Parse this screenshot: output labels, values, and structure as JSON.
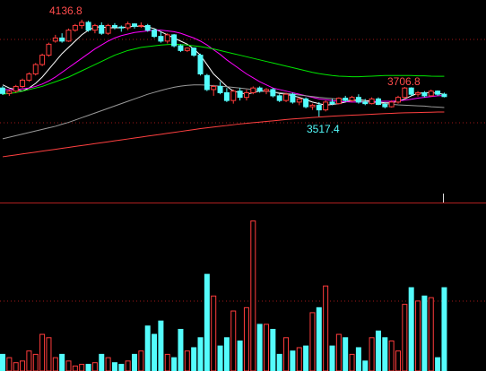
{
  "chart_data": {
    "type": "candlestick",
    "open": [
      3700,
      3665,
      3680,
      3710,
      3750,
      3790,
      3850,
      3910,
      4000,
      4020,
      4000,
      4070,
      4100,
      4120,
      4070,
      4100,
      4050,
      4100,
      4090,
      4085,
      4110,
      4095,
      4100,
      4070,
      4030,
      4000,
      4040,
      3970,
      3940,
      3955,
      3910,
      3780,
      3690,
      3710,
      3670,
      3620,
      3680,
      3640,
      3670,
      3700,
      3680,
      3690,
      3650,
      3620,
      3660,
      3610,
      3630,
      3580,
      3590,
      3560,
      3610,
      3600,
      3635,
      3620,
      3640,
      3610,
      3600,
      3630,
      3595,
      3580,
      3610,
      3640,
      3700,
      3660,
      3670,
      3650,
      3680,
      3660
    ],
    "high": [
      3712,
      3690,
      3720,
      3760,
      3800,
      3860,
      3920,
      3990,
      4040,
      4050,
      4080,
      4110,
      4136.8,
      4130,
      4110,
      4120,
      4110,
      4115,
      4100,
      4125,
      4115,
      4120,
      4110,
      4080,
      4060,
      4050,
      4045,
      3980,
      3960,
      3960,
      3920,
      3790,
      3720,
      3740,
      3700,
      3690,
      3700,
      3690,
      3710,
      3710,
      3700,
      3700,
      3660,
      3670,
      3670,
      3640,
      3640,
      3600,
      3610,
      3620,
      3630,
      3640,
      3650,
      3650,
      3660,
      3630,
      3640,
      3640,
      3610,
      3620,
      3650,
      3706.8,
      3705,
      3680,
      3680,
      3690,
      3685,
      3670
    ],
    "low": [
      3655,
      3650,
      3670,
      3700,
      3740,
      3780,
      3840,
      3900,
      3990,
      3990,
      3995,
      4060,
      4080,
      4060,
      4050,
      4040,
      4040,
      4075,
      4060,
      4070,
      4080,
      4085,
      4060,
      4020,
      3990,
      3985,
      3960,
      3930,
      3930,
      3900,
      3780,
      3680,
      3650,
      3660,
      3610,
      3600,
      3620,
      3620,
      3660,
      3670,
      3660,
      3640,
      3610,
      3610,
      3600,
      3590,
      3570,
      3560,
      3517.4,
      3550,
      3590,
      3595,
      3610,
      3610,
      3600,
      3590,
      3595,
      3590,
      3570,
      3575,
      3600,
      3630,
      3650,
      3645,
      3640,
      3645,
      3650,
      3640
    ],
    "close": [
      3665,
      3680,
      3710,
      3750,
      3790,
      3850,
      3910,
      3980,
      4020,
      4000,
      4070,
      4100,
      4120,
      4070,
      4100,
      4050,
      4100,
      4090,
      4085,
      4110,
      4095,
      4100,
      4070,
      4030,
      4000,
      4040,
      3970,
      3940,
      3955,
      3910,
      3790,
      3690,
      3710,
      3670,
      3620,
      3680,
      3640,
      3670,
      3700,
      3680,
      3690,
      3650,
      3620,
      3660,
      3610,
      3630,
      3580,
      3590,
      3560,
      3610,
      3600,
      3635,
      3620,
      3640,
      3610,
      3600,
      3630,
      3595,
      3580,
      3610,
      3640,
      3700,
      3660,
      3670,
      3650,
      3680,
      3660,
      3645
    ],
    "ylim": [
      2973,
      4263
    ],
    "up_color": "#ff3c3c",
    "down_color": "#54fcfc",
    "lines": [
      {
        "color": "#ffffff",
        "values": [
          3720,
          3700,
          3690,
          3680,
          3700,
          3730,
          3770,
          3820,
          3870,
          3920,
          3960,
          4000,
          4040,
          4070,
          4090,
          4090,
          4085,
          4085,
          4085,
          4090,
          4095,
          4095,
          4090,
          4080,
          4060,
          4040,
          4020,
          4000,
          3980,
          3950,
          3910,
          3850,
          3790,
          3750,
          3710,
          3680,
          3670,
          3660,
          3670,
          3680,
          3680,
          3675,
          3665,
          3660,
          3650,
          3640,
          3625,
          3610,
          3600,
          3590,
          3595,
          3600,
          3610,
          3620,
          3625,
          3620,
          3615,
          3610,
          3605,
          3605,
          3615,
          3630,
          3650,
          3665,
          3670,
          3670,
          3665,
          3660
        ]
      },
      {
        "color": "#ff00ff",
        "values": [
          3690,
          3690,
          3690,
          3695,
          3700,
          3710,
          3725,
          3745,
          3770,
          3800,
          3830,
          3860,
          3890,
          3920,
          3950,
          3975,
          4000,
          4020,
          4035,
          4045,
          4055,
          4060,
          4065,
          4070,
          4070,
          4065,
          4060,
          4050,
          4035,
          4020,
          4000,
          3975,
          3945,
          3915,
          3880,
          3850,
          3820,
          3790,
          3765,
          3740,
          3720,
          3700,
          3690,
          3680,
          3670,
          3660,
          3650,
          3640,
          3630,
          3625,
          3620,
          3615,
          3612,
          3610,
          3610,
          3610,
          3612,
          3615,
          3615,
          3615,
          3618,
          3622,
          3628,
          3635,
          3640,
          3645,
          3650,
          3652
        ]
      },
      {
        "color": "#00e600",
        "values": [
          3660,
          3665,
          3670,
          3680,
          3690,
          3700,
          3710,
          3725,
          3740,
          3755,
          3770,
          3790,
          3810,
          3830,
          3850,
          3870,
          3890,
          3910,
          3925,
          3940,
          3950,
          3960,
          3965,
          3970,
          3975,
          3978,
          3980,
          3978,
          3975,
          3970,
          3965,
          3958,
          3950,
          3940,
          3930,
          3920,
          3910,
          3900,
          3890,
          3880,
          3870,
          3860,
          3850,
          3840,
          3830,
          3820,
          3810,
          3800,
          3792,
          3786,
          3780,
          3776,
          3774,
          3772,
          3772,
          3774,
          3776,
          3778,
          3780,
          3780,
          3780,
          3780,
          3780,
          3778,
          3778,
          3776,
          3775,
          3775
        ]
      },
      {
        "color": "#9a9a9a",
        "values": [
          3375,
          3385,
          3395,
          3405,
          3415,
          3425,
          3435,
          3445,
          3455,
          3468,
          3480,
          3495,
          3510,
          3525,
          3540,
          3555,
          3570,
          3585,
          3600,
          3615,
          3630,
          3645,
          3660,
          3672,
          3684,
          3695,
          3705,
          3712,
          3717,
          3720,
          3720,
          3718,
          3715,
          3712,
          3708,
          3704,
          3700,
          3695,
          3690,
          3685,
          3680,
          3675,
          3670,
          3665,
          3660,
          3655,
          3650,
          3645,
          3640,
          3636,
          3632,
          3628,
          3624,
          3620,
          3616,
          3612,
          3608,
          3604,
          3600,
          3596,
          3592,
          3590,
          3588,
          3586,
          3584,
          3580,
          3578,
          3575
        ]
      },
      {
        "color": "#ff4040",
        "values": [
          3260,
          3266,
          3272,
          3278,
          3284,
          3290,
          3296,
          3302,
          3308,
          3314,
          3320,
          3326,
          3332,
          3338,
          3344,
          3350,
          3356,
          3362,
          3368,
          3374,
          3380,
          3386,
          3392,
          3398,
          3404,
          3410,
          3416,
          3422,
          3428,
          3434,
          3440,
          3445,
          3450,
          3455,
          3460,
          3465,
          3470,
          3474,
          3478,
          3482,
          3486,
          3490,
          3494,
          3498,
          3502,
          3505,
          3508,
          3511,
          3514,
          3517,
          3520,
          3522,
          3524,
          3526,
          3528,
          3530,
          3532,
          3534,
          3536,
          3538,
          3540,
          3541,
          3542,
          3543,
          3544,
          3545,
          3546,
          3546
        ]
      }
    ],
    "volume": {
      "values": [
        10,
        8,
        5,
        6,
        12,
        10,
        22,
        20,
        8,
        10,
        6,
        3,
        4,
        4,
        5,
        10,
        8,
        5,
        4,
        6,
        10,
        12,
        27,
        22,
        30,
        10,
        8,
        25,
        12,
        14,
        20,
        58,
        45,
        15,
        20,
        36,
        18,
        38,
        90,
        28,
        28,
        25,
        10,
        20,
        12,
        14,
        15,
        35,
        38,
        51,
        15,
        22,
        20,
        10,
        14,
        6,
        20,
        24,
        20,
        18,
        12,
        40,
        50,
        42,
        45,
        44,
        8,
        50
      ],
      "ylim": [
        0,
        100
      ]
    },
    "annotations": [
      "4136.8",
      "3706.8",
      "3517.4"
    ]
  }
}
